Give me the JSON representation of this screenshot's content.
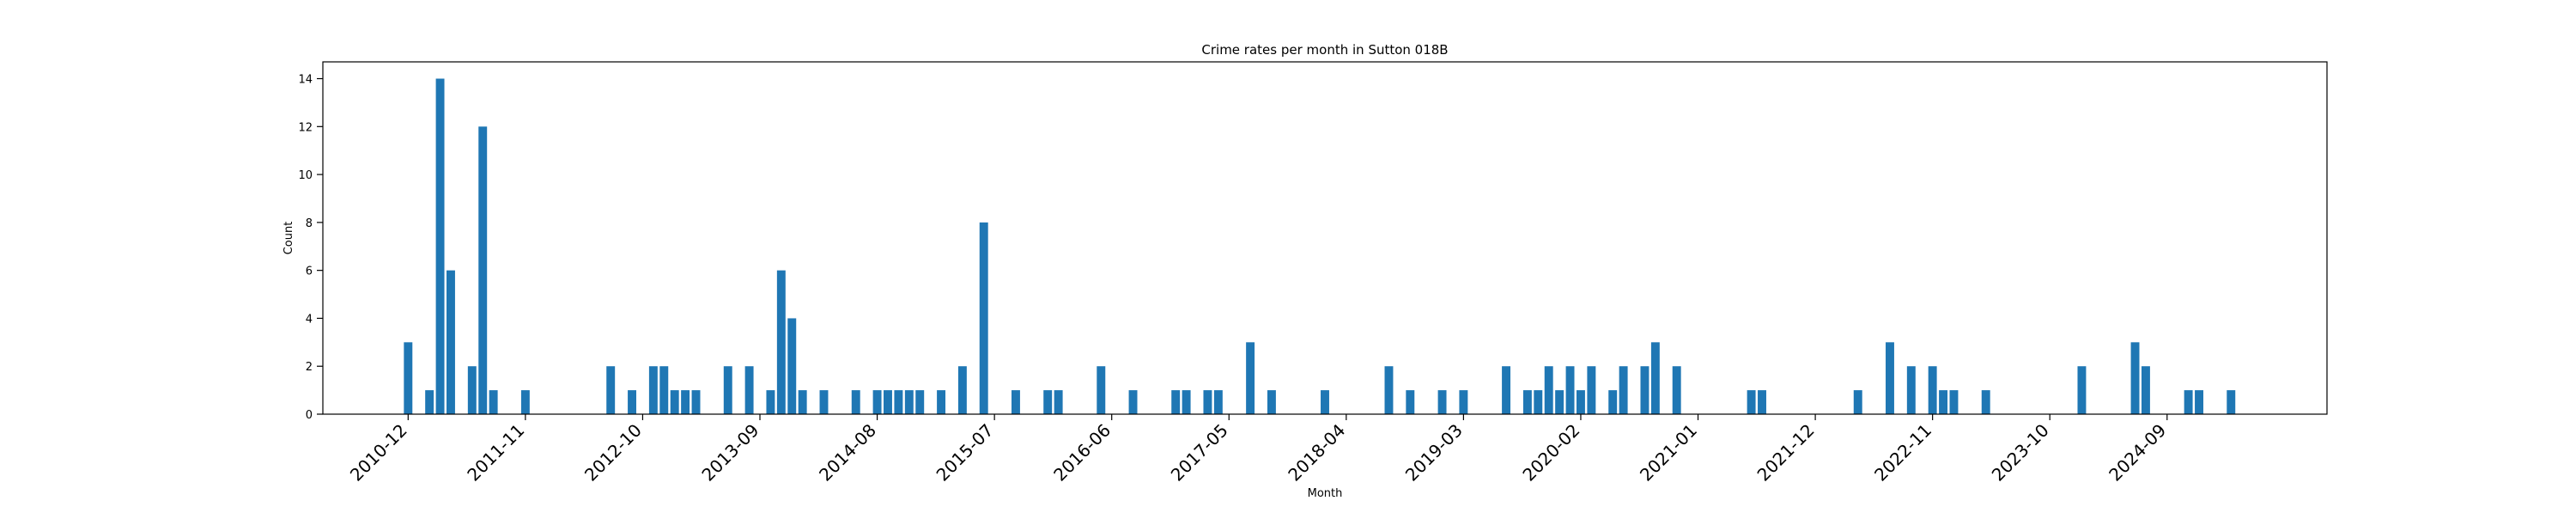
{
  "chart_data": {
    "type": "bar",
    "title": "Crime rates per month in Sutton 018B",
    "xlabel": "Month",
    "ylabel": "Count",
    "ylim": [
      0,
      14.7
    ],
    "yticks": [
      0,
      2,
      4,
      6,
      8,
      10,
      12,
      14
    ],
    "xlim": [
      "2010-04",
      "2025-12"
    ],
    "xtick_labels": [
      "2010-12",
      "2011-11",
      "2012-10",
      "2013-09",
      "2014-08",
      "2015-07",
      "2016-06",
      "2017-05",
      "2018-04",
      "2019-03",
      "2020-02",
      "2021-01",
      "2021-12",
      "2022-11",
      "2023-10",
      "2024-09"
    ],
    "bar_color": "#1f77b4",
    "grid": false,
    "legend": "none",
    "months": [
      "2010-12",
      "2011-02",
      "2011-03",
      "2011-04",
      "2011-06",
      "2011-07",
      "2011-08",
      "2011-11",
      "2012-07",
      "2012-09",
      "2012-11",
      "2012-12",
      "2013-01",
      "2013-02",
      "2013-03",
      "2013-06",
      "2013-08",
      "2013-10",
      "2013-11",
      "2013-12",
      "2014-01",
      "2014-03",
      "2014-06",
      "2014-08",
      "2014-09",
      "2014-10",
      "2014-11",
      "2014-12",
      "2015-02",
      "2015-04",
      "2015-06",
      "2015-09",
      "2015-12",
      "2016-01",
      "2016-05",
      "2016-08",
      "2016-12",
      "2017-01",
      "2017-03",
      "2017-04",
      "2017-07",
      "2017-09",
      "2018-02",
      "2018-08",
      "2018-10",
      "2019-01",
      "2019-03",
      "2019-07",
      "2019-09",
      "2019-10",
      "2019-11",
      "2019-12",
      "2020-01",
      "2020-02",
      "2020-03",
      "2020-05",
      "2020-06",
      "2020-08",
      "2020-09",
      "2020-11",
      "2021-06",
      "2021-07",
      "2022-04",
      "2022-07",
      "2022-09",
      "2022-11",
      "2022-12",
      "2023-01",
      "2023-04",
      "2024-01",
      "2024-06",
      "2024-07",
      "2024-11",
      "2024-12",
      "2025-03"
    ],
    "values": [
      3,
      1,
      14,
      6,
      2,
      12,
      1,
      1,
      2,
      1,
      2,
      2,
      1,
      1,
      1,
      2,
      2,
      1,
      6,
      4,
      1,
      1,
      1,
      1,
      1,
      1,
      1,
      1,
      1,
      2,
      8,
      1,
      1,
      1,
      2,
      1,
      1,
      1,
      1,
      1,
      3,
      1,
      1,
      2,
      1,
      1,
      1,
      2,
      1,
      1,
      2,
      1,
      2,
      1,
      2,
      1,
      2,
      2,
      3,
      2,
      1,
      1,
      1,
      3,
      2,
      2,
      1,
      1,
      1,
      2,
      3,
      2,
      1,
      1,
      1
    ]
  }
}
